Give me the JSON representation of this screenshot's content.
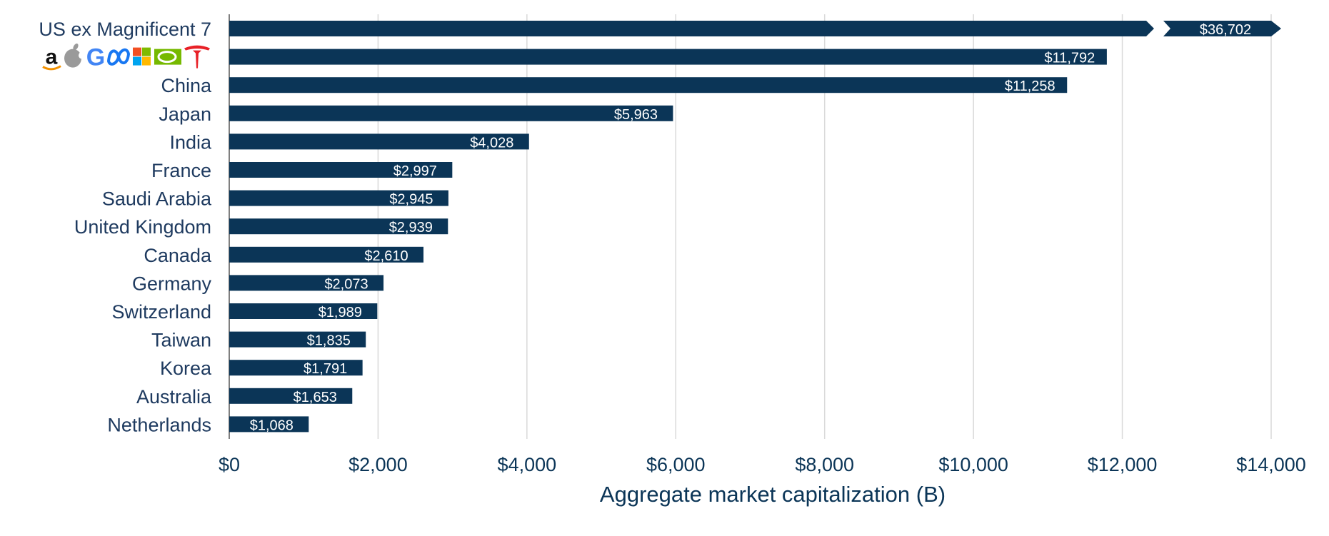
{
  "colors": {
    "bar": "#0b3557",
    "bar_label_text": "#ffffff",
    "category_text": "#1e3a5f",
    "tick_text": "#0b3557",
    "grid": "#d9d9d9",
    "axis": "#7f7f7f"
  },
  "chart_data": {
    "type": "bar",
    "orientation": "horizontal",
    "title": "",
    "xlabel": "Aggregate market capitalization (B)",
    "ylabel": "",
    "xlim": [
      0,
      14000
    ],
    "grid": "vertical",
    "legend": "none",
    "x_ticks": [
      0,
      2000,
      4000,
      6000,
      8000,
      10000,
      12000,
      14000
    ],
    "x_tick_labels": [
      "$0",
      "$2,000",
      "$4,000",
      "$6,000",
      "$8,000",
      "$10,000",
      "$12,000",
      "$14,000"
    ],
    "categories": [
      "US ex Magnificent 7",
      "",
      "China",
      "Japan",
      "India",
      "France",
      "Saudi Arabia",
      "United Kingdom",
      "Canada",
      "Germany",
      "Switzerland",
      "Taiwan",
      "Korea",
      "Australia",
      "Netherlands"
    ],
    "category_icons": [
      null,
      [
        "amazon-logo",
        "apple-logo",
        "google-logo",
        "meta-logo",
        "microsoft-logo",
        "nvidia-logo",
        "tesla-logo"
      ],
      null,
      null,
      null,
      null,
      null,
      null,
      null,
      null,
      null,
      null,
      null,
      null,
      null
    ],
    "values": [
      36702,
      11792,
      11258,
      5963,
      4028,
      2997,
      2945,
      2939,
      2610,
      2073,
      1989,
      1835,
      1791,
      1653,
      1068
    ],
    "value_labels": [
      "$36,702",
      "$11,792",
      "$11,258",
      "$5,963",
      "$4,028",
      "$2,997",
      "$2,945",
      "$2,939",
      "$2,610",
      "$2,073",
      "$1,989",
      "$1,835",
      "$1,791",
      "$1,653",
      "$1,068"
    ],
    "truncated_bars": [
      0
    ],
    "truncated_note": "bar exceeds axis range, shown with break arrow"
  }
}
